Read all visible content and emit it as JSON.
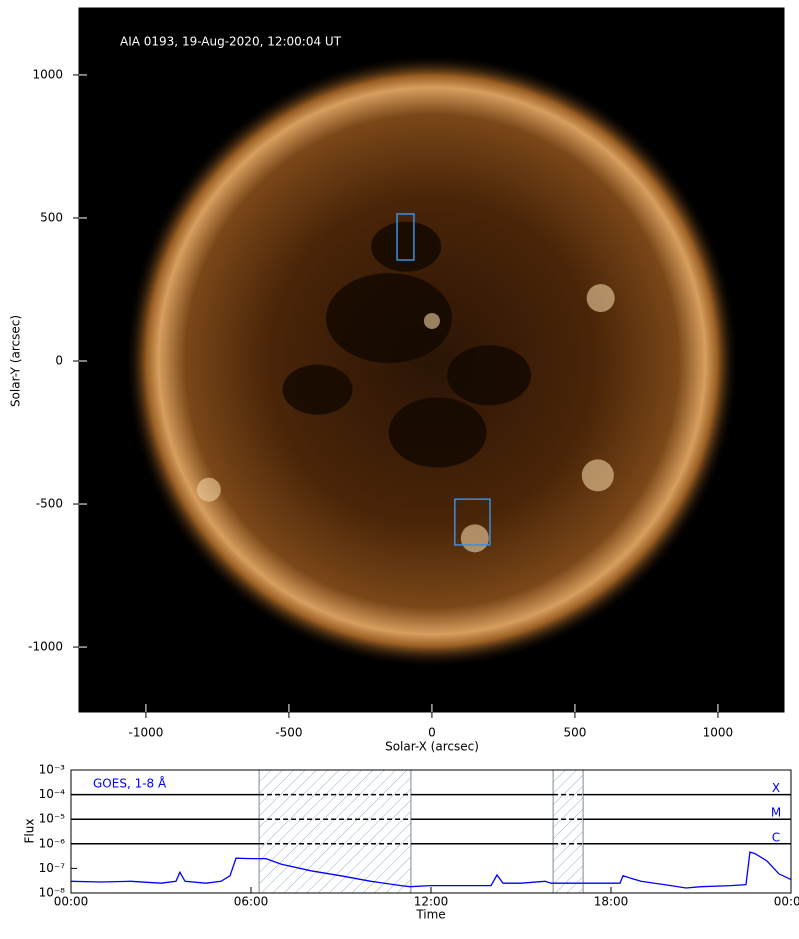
{
  "chart_data": [
    {
      "type": "image",
      "title": "AIA 0193, 19-Aug-2020, 12:00:04 UT",
      "xlabel": "Solar-X (arcsec)",
      "ylabel": "Solar-Y (arcsec)",
      "xlim": [
        -1234,
        1231
      ],
      "ylim": [
        -1227,
        1234
      ],
      "xticks": [
        -1000,
        -500,
        0,
        500,
        1000
      ],
      "yticks": [
        -1000,
        -500,
        0,
        500,
        1000
      ],
      "regions": [
        {
          "xlim": [
            -122,
            -63
          ],
          "ylim": [
            353,
            514
          ],
          "color": "#3a8fe0"
        },
        {
          "xlim": [
            80,
            203
          ],
          "ylim": [
            -643,
            -483
          ],
          "color": "#3a8fe0"
        }
      ]
    },
    {
      "type": "line",
      "title": "GOES, 1-8 Å",
      "xlabel": "Time",
      "ylabel": "Flux",
      "ylog": true,
      "xlim": [
        0,
        24
      ],
      "ylim": [
        1e-08,
        0.001
      ],
      "xticks": [
        {
          "value": 0,
          "label": "00:00"
        },
        {
          "value": 6,
          "label": "06:00"
        },
        {
          "value": 12,
          "label": "12:00"
        },
        {
          "value": 18,
          "label": "18:00"
        },
        {
          "value": 24,
          "label": "00:00"
        }
      ],
      "yticks": [
        {
          "value": 1e-08,
          "label": "10⁻⁸"
        },
        {
          "value": 1e-07,
          "label": "10⁻⁷"
        },
        {
          "value": 1e-06,
          "label": "10⁻⁶"
        },
        {
          "value": 1e-05,
          "label": "10⁻⁵"
        },
        {
          "value": 0.0001,
          "label": "10⁻⁴"
        },
        {
          "value": 0.001,
          "label": "10⁻³"
        }
      ],
      "flare_classes": [
        {
          "label": "X",
          "value": 0.0001
        },
        {
          "label": "M",
          "value": 1e-05
        },
        {
          "label": "C",
          "value": 1e-06
        }
      ],
      "spans": [
        [
          6.27,
          11.33
        ],
        [
          16.07,
          17.07
        ]
      ],
      "x": [
        0,
        1,
        2,
        3,
        3.5,
        3.63,
        3.8,
        4.5,
        5,
        5.3,
        5.5,
        6,
        6.5,
        7,
        8,
        9,
        10,
        11,
        11.3,
        12,
        13,
        14,
        14.2,
        14.4,
        15,
        15.8,
        16,
        17,
        18,
        18.3,
        18.4,
        19,
        20,
        20.5,
        21,
        22,
        22.5,
        22.63,
        22.8,
        23.2,
        23.6,
        24
      ],
      "series": [
        {
          "name": "GOES 1-8 Å",
          "color": "#0000ff",
          "values": [
            3e-08,
            2.8e-08,
            3e-08,
            2.5e-08,
            3e-08,
            7e-08,
            3e-08,
            2.5e-08,
            3e-08,
            5e-08,
            2.6e-07,
            2.5e-07,
            2.5e-07,
            1.5e-07,
            8e-08,
            5e-08,
            3e-08,
            2e-08,
            1.8e-08,
            2e-08,
            2e-08,
            2e-08,
            5.4e-08,
            2.5e-08,
            2.5e-08,
            3e-08,
            2.5e-08,
            2.5e-08,
            2.5e-08,
            2.5e-08,
            5e-08,
            3e-08,
            2e-08,
            1.6e-08,
            1.8e-08,
            2e-08,
            2.2e-08,
            4.6e-07,
            4e-07,
            2e-07,
            6e-08,
            3.5e-08
          ]
        }
      ]
    }
  ]
}
